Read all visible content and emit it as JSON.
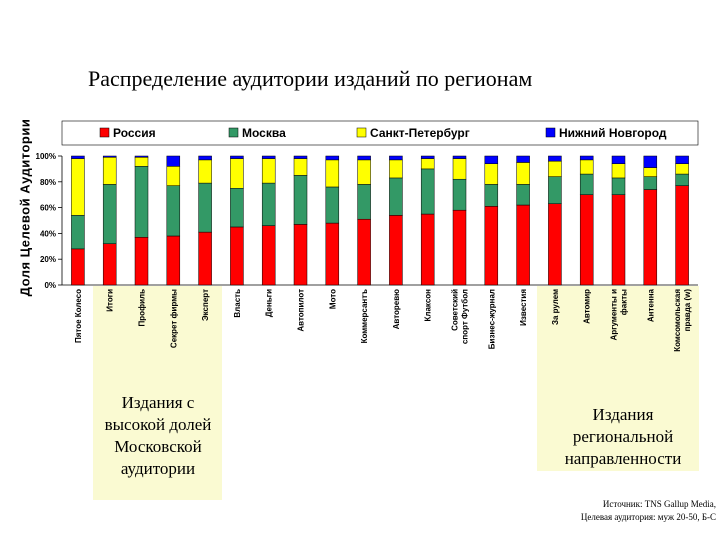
{
  "title": "Распределение аудитории изданий по регионам",
  "ylabel": "Доля Целевой Аудитории",
  "notes": {
    "left": "Издания с высокой долей Московской аудитории",
    "right": "Издания региональной направленности"
  },
  "source": {
    "line1": "Источник: TNS Gallup Media,",
    "line2": "Целевая аудитория: муж 20-50, Б-С"
  },
  "colors": {
    "russia": "#ff0000",
    "moscow": "#339966",
    "spb": "#ffff00",
    "nn": "#0000ff",
    "highlight": "#fafad2"
  },
  "chart_data": {
    "type": "bar",
    "stacked": true,
    "orientation": "vertical",
    "ylim": [
      0,
      100
    ],
    "yticks": [
      "0%",
      "20%",
      "40%",
      "60%",
      "80%",
      "100%"
    ],
    "legend_position": "top",
    "grid": false,
    "categories": [
      "Пятое Колесо",
      "Итоги",
      "Профиль",
      "Секрет фирмы",
      "Эксперт",
      "Власть",
      "Деньги",
      "Автопилот",
      "Мото",
      "Коммерсантъ",
      "Авторевю",
      "Клаксон",
      "Советский спорт Футбол",
      "Бизнес-журнал",
      "Известия",
      "За рулем",
      "Автомир",
      "Аргументы и факты",
      "Антенна",
      "Комсомольская правда (w)"
    ],
    "series": [
      {
        "name": "Россия",
        "color": "#ff0000",
        "values": [
          28,
          32,
          37,
          38,
          41,
          45,
          46,
          47,
          48,
          51,
          54,
          55,
          58,
          61,
          62,
          63,
          70,
          70,
          74,
          77
        ]
      },
      {
        "name": "Москва",
        "color": "#339966",
        "values": [
          26,
          46,
          55,
          39,
          38,
          30,
          33,
          38,
          28,
          27,
          29,
          35,
          24,
          17,
          16,
          21,
          16,
          13,
          10,
          9
        ]
      },
      {
        "name": "Санкт-Петербург",
        "color": "#ffff00",
        "values": [
          44,
          21,
          7,
          15,
          18,
          23,
          19,
          13,
          21,
          19,
          14,
          8,
          16,
          16,
          17,
          12,
          11,
          11,
          7,
          8
        ]
      },
      {
        "name": "Нижний Новгород",
        "color": "#0000ff",
        "values": [
          2,
          1,
          1,
          8,
          3,
          2,
          2,
          2,
          3,
          3,
          3,
          2,
          2,
          6,
          5,
          4,
          3,
          6,
          9,
          6
        ]
      }
    ]
  }
}
